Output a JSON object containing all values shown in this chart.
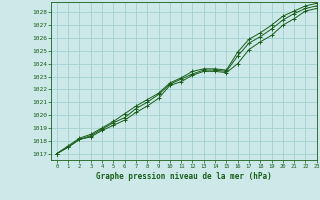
{
  "title": "Graphe pression niveau de la mer (hPa)",
  "bg_color": "#cce8e8",
  "grid_color": "#99cccc",
  "line_color": "#1a5e1a",
  "marker_color": "#1a5e1a",
  "xlim": [
    -0.5,
    23
  ],
  "ylim": [
    1016.5,
    1028.8
  ],
  "xticks": [
    0,
    1,
    2,
    3,
    4,
    5,
    6,
    7,
    8,
    9,
    10,
    11,
    12,
    13,
    14,
    15,
    16,
    17,
    18,
    19,
    20,
    21,
    22,
    23
  ],
  "yticks": [
    1017,
    1018,
    1019,
    1020,
    1021,
    1022,
    1023,
    1024,
    1025,
    1026,
    1027,
    1028
  ],
  "series": [
    [
      1017.0,
      1017.5,
      1018.1,
      1018.3,
      1018.8,
      1019.2,
      1019.6,
      1020.2,
      1020.7,
      1021.3,
      1022.3,
      1022.6,
      1023.1,
      1023.4,
      1023.4,
      1023.3,
      1024.0,
      1025.1,
      1025.7,
      1026.2,
      1027.0,
      1027.5,
      1028.1,
      1028.3
    ],
    [
      1017.0,
      1017.5,
      1018.1,
      1018.4,
      1018.9,
      1019.4,
      1019.8,
      1020.5,
      1021.0,
      1021.6,
      1022.4,
      1022.8,
      1023.2,
      1023.5,
      1023.5,
      1023.4,
      1024.6,
      1025.6,
      1026.1,
      1026.7,
      1027.4,
      1027.9,
      1028.3,
      1028.5
    ],
    [
      1017.0,
      1017.6,
      1018.2,
      1018.5,
      1019.0,
      1019.5,
      1020.1,
      1020.7,
      1021.2,
      1021.7,
      1022.5,
      1022.9,
      1023.4,
      1023.6,
      1023.6,
      1023.5,
      1024.9,
      1025.9,
      1026.4,
      1027.0,
      1027.7,
      1028.1,
      1028.5,
      1028.7
    ]
  ]
}
